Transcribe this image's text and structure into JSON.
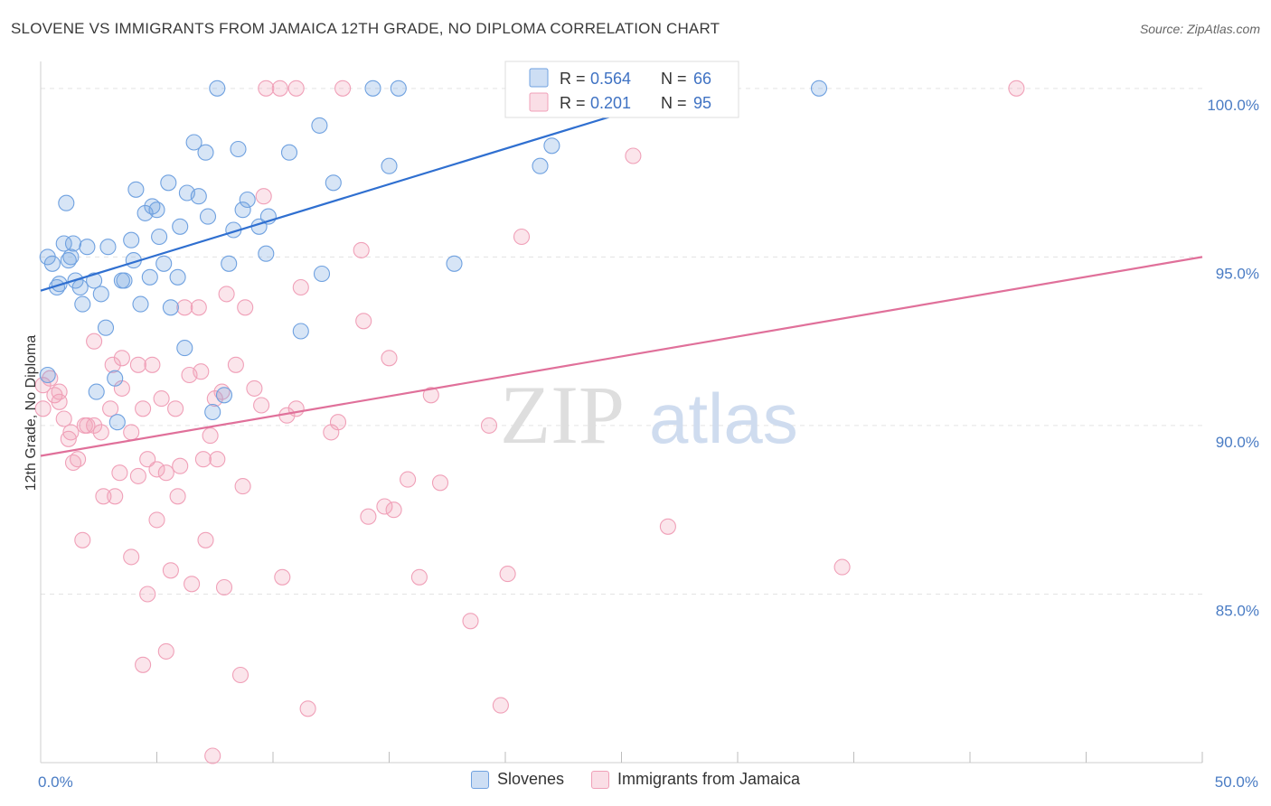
{
  "header": {
    "title": "SLOVENE VS IMMIGRANTS FROM JAMAICA 12TH GRADE, NO DIPLOMA CORRELATION CHART",
    "source": "Source: ZipAtlas.com"
  },
  "watermark": {
    "zip": "ZIP",
    "atlas": "atlas"
  },
  "chart_data": {
    "type": "scatter",
    "ylabel": "12th Grade, No Diploma",
    "xlim": [
      0,
      50
    ],
    "ylim": [
      80,
      100.8
    ],
    "x_tick_labels": [
      {
        "value": 0,
        "label": "0.0%"
      },
      {
        "value": 50,
        "label": "50.0%"
      }
    ],
    "y_tick_labels": [
      {
        "value": 100,
        "label": "100.0%"
      },
      {
        "value": 95,
        "label": "95.0%"
      },
      {
        "value": 90,
        "label": "90.0%"
      },
      {
        "value": 85,
        "label": "85.0%"
      }
    ],
    "x_minor_ticks": [
      0,
      5,
      10,
      15,
      20,
      25,
      30,
      35,
      40,
      45,
      50
    ],
    "grid": "horizontal-dashed",
    "stats_legend": {
      "placement": "top-center",
      "entries": [
        {
          "r_label": "R = ",
          "r_value": "0.564",
          "n_label": "N = ",
          "n_value": "66",
          "color": "#6fa1e0"
        },
        {
          "r_label": "R = ",
          "r_value": "0.201",
          "n_label": "N = ",
          "n_value": "95",
          "color": "#f0a0b8"
        }
      ]
    },
    "series": [
      {
        "name": "Slovenes",
        "color": "#6fa1e0",
        "fill": "rgba(111,161,224,0.28)",
        "line_color": "#2f6fd0",
        "trend": {
          "x": [
            0,
            28.5
          ],
          "y": [
            94.0,
            100.0
          ]
        },
        "points": [
          [
            0.3,
            91.5
          ],
          [
            0.3,
            95.0
          ],
          [
            0.5,
            94.8
          ],
          [
            0.7,
            94.1
          ],
          [
            0.8,
            94.2
          ],
          [
            1.0,
            95.4
          ],
          [
            1.1,
            96.6
          ],
          [
            1.2,
            94.9
          ],
          [
            1.3,
            95.0
          ],
          [
            1.4,
            95.4
          ],
          [
            1.5,
            94.3
          ],
          [
            1.7,
            94.1
          ],
          [
            1.8,
            93.6
          ],
          [
            2.0,
            95.3
          ],
          [
            2.3,
            94.3
          ],
          [
            2.4,
            91.0
          ],
          [
            2.6,
            93.9
          ],
          [
            2.8,
            92.9
          ],
          [
            2.9,
            95.3
          ],
          [
            3.2,
            91.4
          ],
          [
            3.3,
            90.1
          ],
          [
            3.5,
            94.3
          ],
          [
            3.6,
            94.3
          ],
          [
            3.9,
            95.5
          ],
          [
            4.0,
            94.9
          ],
          [
            4.1,
            97.0
          ],
          [
            4.3,
            93.6
          ],
          [
            4.5,
            96.3
          ],
          [
            4.7,
            94.4
          ],
          [
            4.8,
            96.5
          ],
          [
            5.0,
            96.4
          ],
          [
            5.1,
            95.6
          ],
          [
            5.3,
            94.8
          ],
          [
            5.5,
            97.2
          ],
          [
            5.6,
            93.5
          ],
          [
            5.9,
            94.4
          ],
          [
            6.0,
            95.9
          ],
          [
            6.2,
            92.3
          ],
          [
            6.3,
            96.9
          ],
          [
            6.6,
            98.4
          ],
          [
            6.8,
            96.8
          ],
          [
            7.1,
            98.1
          ],
          [
            7.2,
            96.2
          ],
          [
            7.4,
            90.4
          ],
          [
            7.6,
            100.0
          ],
          [
            7.9,
            90.9
          ],
          [
            8.1,
            94.8
          ],
          [
            8.3,
            95.8
          ],
          [
            8.5,
            98.2
          ],
          [
            8.7,
            96.4
          ],
          [
            8.9,
            96.7
          ],
          [
            9.4,
            95.9
          ],
          [
            9.7,
            95.1
          ],
          [
            9.8,
            96.2
          ],
          [
            10.7,
            98.1
          ],
          [
            11.2,
            92.8
          ],
          [
            12.0,
            98.9
          ],
          [
            12.1,
            94.5
          ],
          [
            12.6,
            97.2
          ],
          [
            14.3,
            100.0
          ],
          [
            15.0,
            97.7
          ],
          [
            15.4,
            100.0
          ],
          [
            17.8,
            94.8
          ],
          [
            21.5,
            97.7
          ],
          [
            22.0,
            98.3
          ],
          [
            33.5,
            100.0
          ]
        ]
      },
      {
        "name": "Immigrants from Jamaica",
        "color": "#f0a0b8",
        "fill": "rgba(240,160,184,0.28)",
        "line_color": "#e0709a",
        "trend": {
          "x": [
            0,
            50
          ],
          "y": [
            89.1,
            95.0
          ]
        },
        "points": [
          [
            0.1,
            91.2
          ],
          [
            0.1,
            90.5
          ],
          [
            0.4,
            91.4
          ],
          [
            0.6,
            90.9
          ],
          [
            0.8,
            91.0
          ],
          [
            0.8,
            90.7
          ],
          [
            1.0,
            90.2
          ],
          [
            1.2,
            89.6
          ],
          [
            1.3,
            89.8
          ],
          [
            1.4,
            88.9
          ],
          [
            1.6,
            89.0
          ],
          [
            1.8,
            86.6
          ],
          [
            1.9,
            90.0
          ],
          [
            2.0,
            90.0
          ],
          [
            2.3,
            92.5
          ],
          [
            2.3,
            90.0
          ],
          [
            2.6,
            89.8
          ],
          [
            2.7,
            87.9
          ],
          [
            3.0,
            90.5
          ],
          [
            3.1,
            91.8
          ],
          [
            3.2,
            87.9
          ],
          [
            3.4,
            88.6
          ],
          [
            3.5,
            91.1
          ],
          [
            3.5,
            92.0
          ],
          [
            3.9,
            89.8
          ],
          [
            3.9,
            86.1
          ],
          [
            4.2,
            88.5
          ],
          [
            4.2,
            91.8
          ],
          [
            4.4,
            90.5
          ],
          [
            4.4,
            82.9
          ],
          [
            4.6,
            89.0
          ],
          [
            4.6,
            85.0
          ],
          [
            4.8,
            91.8
          ],
          [
            5.0,
            88.7
          ],
          [
            5.0,
            87.2
          ],
          [
            5.2,
            90.8
          ],
          [
            5.4,
            88.6
          ],
          [
            5.4,
            83.3
          ],
          [
            5.6,
            85.7
          ],
          [
            5.8,
            90.5
          ],
          [
            5.9,
            87.9
          ],
          [
            6.0,
            88.8
          ],
          [
            6.2,
            93.5
          ],
          [
            6.4,
            91.5
          ],
          [
            6.5,
            85.3
          ],
          [
            6.8,
            93.5
          ],
          [
            6.9,
            91.6
          ],
          [
            7.0,
            89.0
          ],
          [
            7.1,
            86.6
          ],
          [
            7.3,
            89.7
          ],
          [
            7.4,
            80.2
          ],
          [
            7.5,
            90.8
          ],
          [
            7.6,
            89.0
          ],
          [
            7.8,
            91.0
          ],
          [
            7.9,
            85.2
          ],
          [
            8.0,
            93.9
          ],
          [
            8.4,
            91.8
          ],
          [
            8.6,
            82.6
          ],
          [
            8.7,
            88.2
          ],
          [
            8.8,
            93.5
          ],
          [
            9.2,
            91.1
          ],
          [
            9.5,
            90.6
          ],
          [
            9.6,
            96.8
          ],
          [
            9.7,
            100.0
          ],
          [
            10.3,
            100.0
          ],
          [
            10.4,
            85.5
          ],
          [
            10.6,
            90.3
          ],
          [
            11.0,
            100.0
          ],
          [
            11.0,
            90.5
          ],
          [
            11.2,
            94.1
          ],
          [
            11.5,
            81.6
          ],
          [
            12.5,
            89.8
          ],
          [
            12.8,
            90.1
          ],
          [
            13.0,
            100.0
          ],
          [
            13.8,
            95.2
          ],
          [
            13.9,
            93.1
          ],
          [
            14.1,
            87.3
          ],
          [
            14.8,
            87.6
          ],
          [
            15.0,
            92.0
          ],
          [
            15.2,
            87.5
          ],
          [
            15.8,
            88.4
          ],
          [
            16.3,
            85.5
          ],
          [
            16.8,
            90.9
          ],
          [
            17.2,
            88.3
          ],
          [
            18.5,
            84.2
          ],
          [
            19.3,
            90.0
          ],
          [
            19.8,
            81.7
          ],
          [
            20.1,
            85.6
          ],
          [
            20.7,
            95.6
          ],
          [
            20.8,
            100.0
          ],
          [
            23.5,
            100.0
          ],
          [
            25.5,
            98.0
          ],
          [
            27.0,
            87.0
          ],
          [
            34.5,
            85.8
          ],
          [
            42.0,
            100.0
          ]
        ]
      }
    ]
  }
}
